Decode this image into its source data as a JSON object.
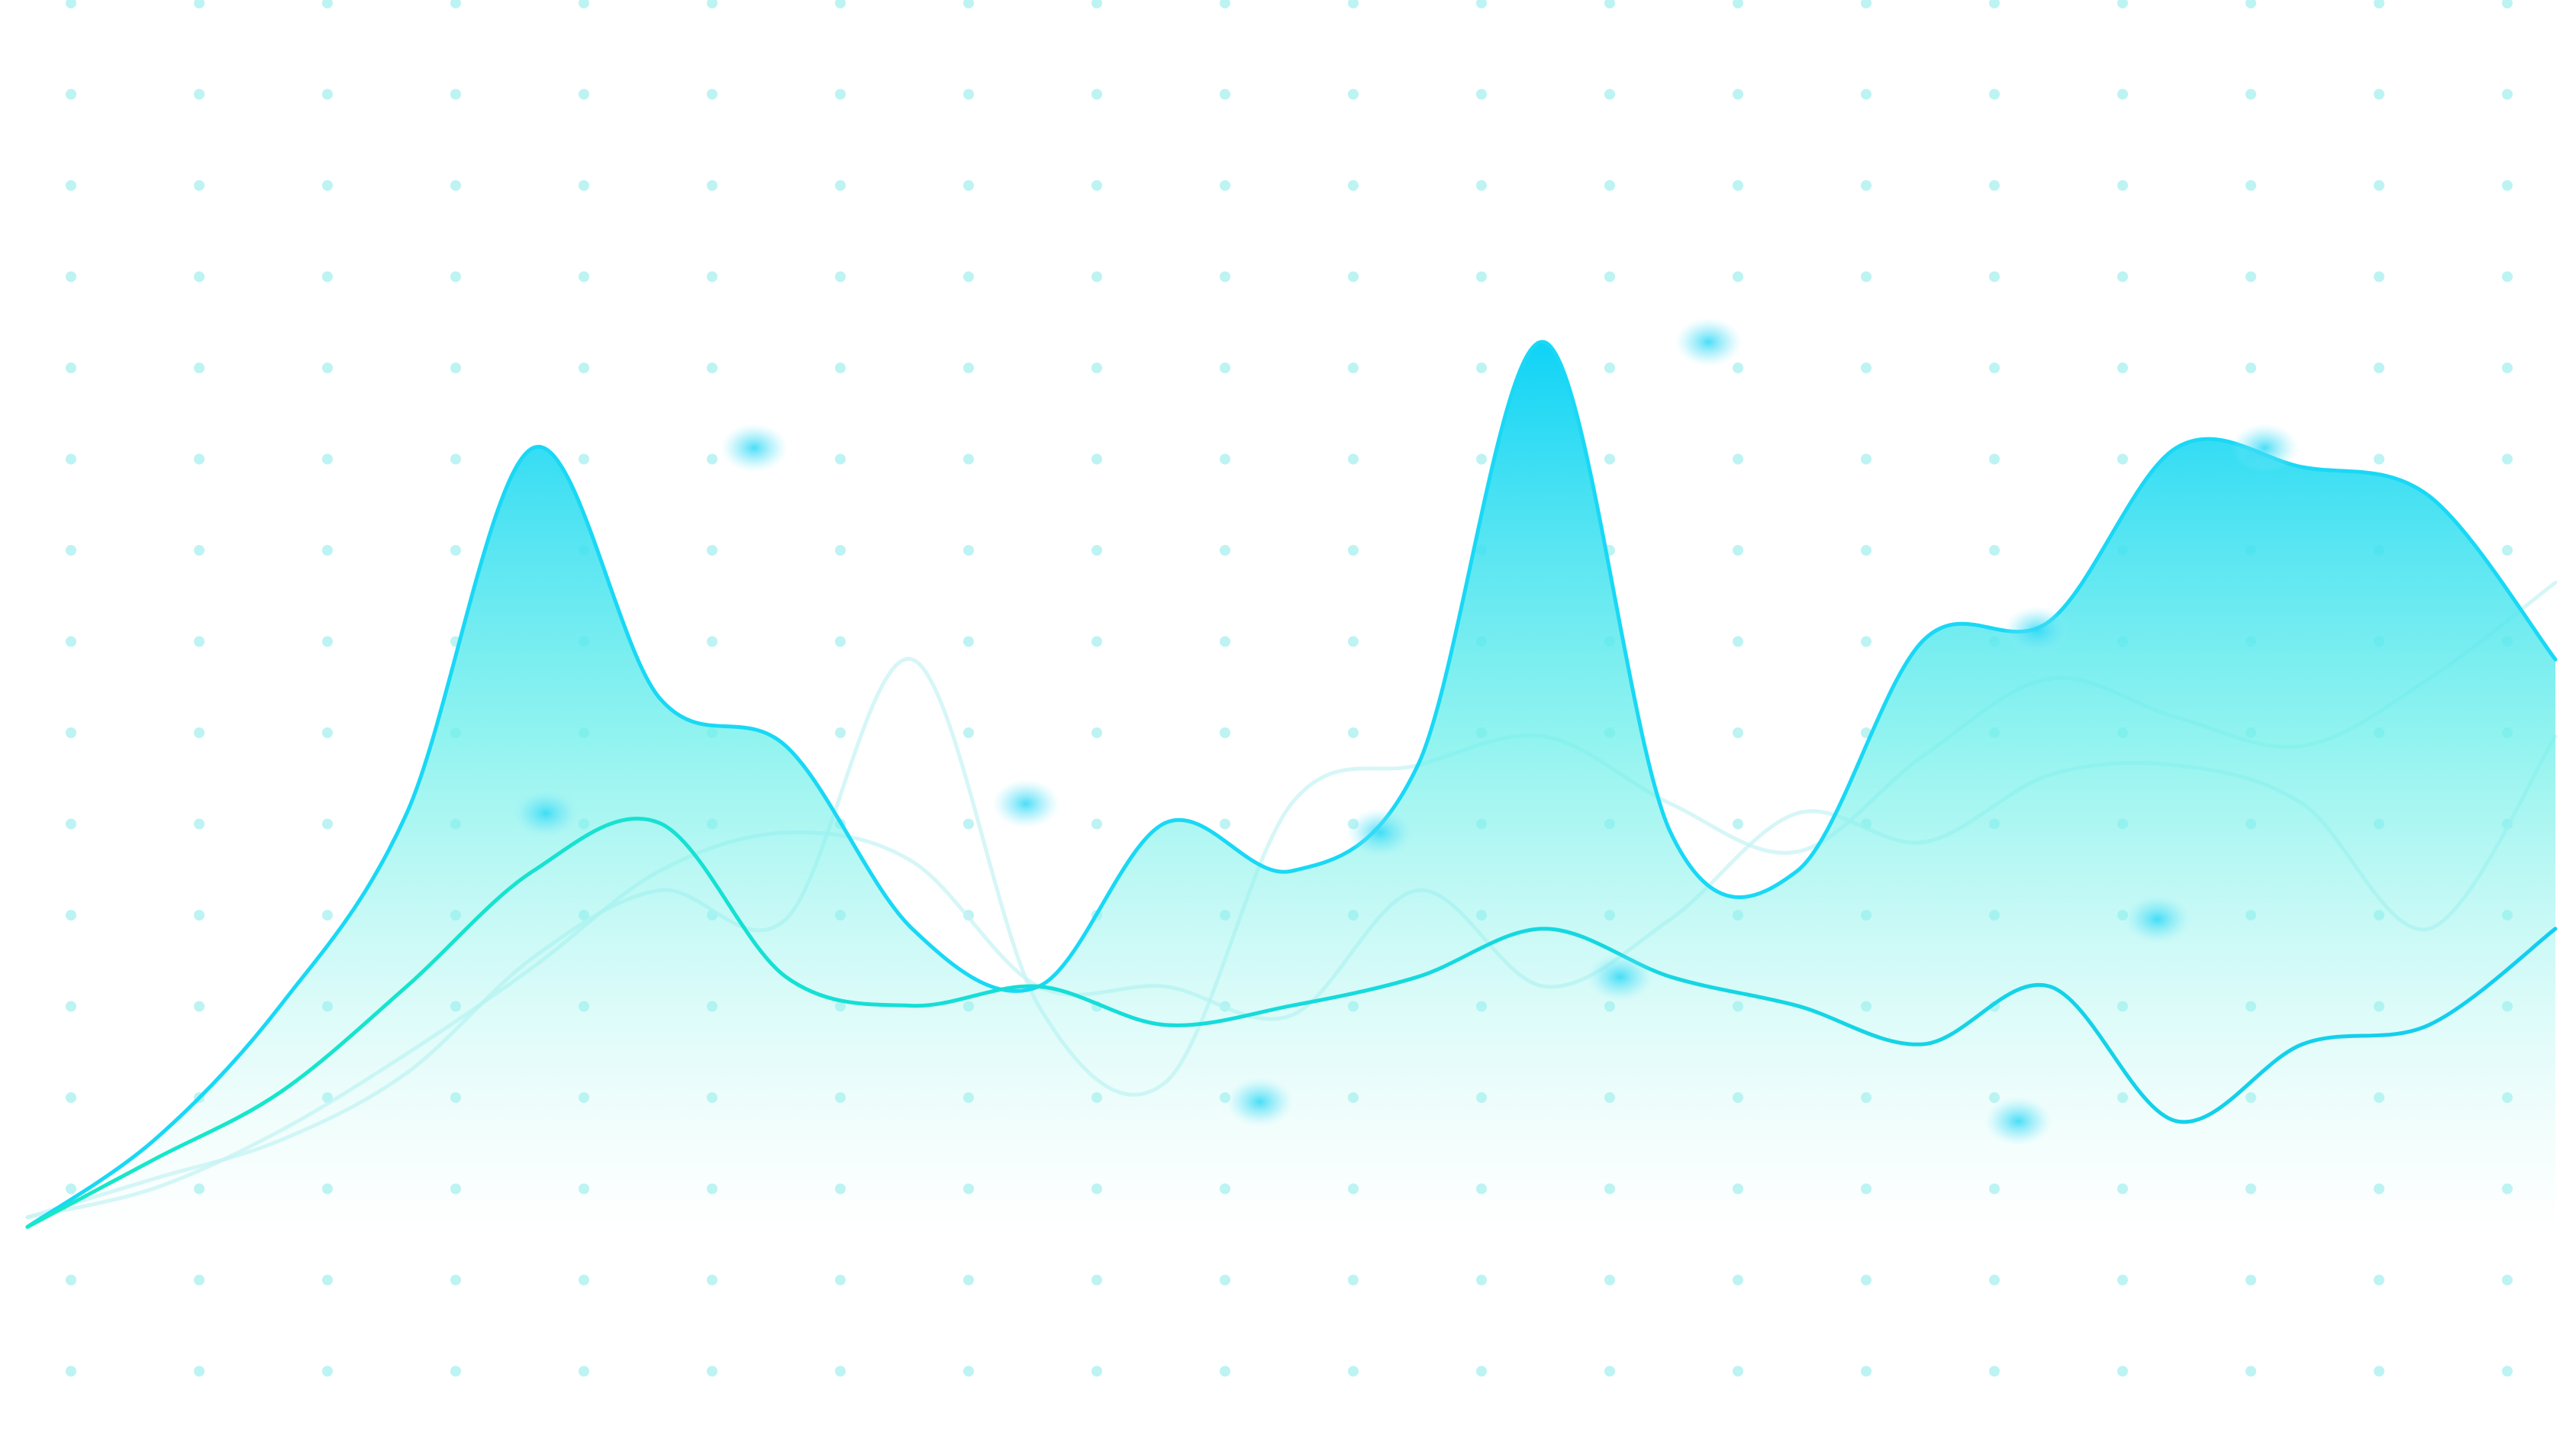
{
  "chart_data": {
    "type": "area",
    "title": "",
    "xlabel": "",
    "ylabel": "",
    "x": [
      0,
      2,
      4,
      6,
      8,
      10,
      12,
      14,
      16,
      18,
      20,
      22,
      24,
      26,
      28,
      30,
      32,
      34,
      36,
      38,
      40
    ],
    "ylim": [
      0,
      100
    ],
    "grid": "dotted",
    "legend": "none",
    "series": [
      {
        "emphasis": "primary-filled",
        "color": "#19d8f5",
        "values": [
          1,
          10,
          24,
          44,
          82,
          56,
          51,
          32,
          26,
          43,
          38,
          49,
          93,
          42,
          38,
          62,
          64,
          82,
          80,
          77,
          60
        ],
        "highlighted_peaks": [
          {
            "x": 8.2,
            "y": 44
          },
          {
            "x": 11.5,
            "y": 82
          },
          {
            "x": 15.8,
            "y": 45
          },
          {
            "x": 21.4,
            "y": 42
          },
          {
            "x": 26.6,
            "y": 93
          },
          {
            "x": 31.8,
            "y": 63
          },
          {
            "x": 35.4,
            "y": 82
          }
        ]
      },
      {
        "emphasis": "secondary",
        "color": "#16dcd8",
        "values": [
          1,
          8,
          15,
          26,
          38,
          43,
          27,
          24,
          26,
          22,
          24,
          27,
          32,
          27,
          24,
          20,
          26,
          12,
          20,
          22,
          32
        ],
        "highlighted_troughs": [
          {
            "x": 19.5,
            "y": 14
          },
          {
            "x": 25.2,
            "y": 27
          },
          {
            "x": 31.5,
            "y": 12
          },
          {
            "x": 33.7,
            "y": 33
          }
        ]
      },
      {
        "emphasis": "faint",
        "color": "#c8f3f4",
        "values": [
          2,
          6,
          10,
          17,
          29,
          36,
          33,
          60,
          24,
          16,
          45,
          49,
          52,
          45,
          40,
          50,
          58,
          54,
          51,
          58,
          68
        ]
      },
      {
        "emphasis": "faint",
        "color": "#c8f3f4",
        "values": [
          2,
          5,
          11,
          19,
          28,
          38,
          42,
          39,
          26,
          26,
          23,
          36,
          26,
          33,
          44,
          41,
          48,
          49,
          45,
          32,
          52
        ]
      }
    ]
  }
}
